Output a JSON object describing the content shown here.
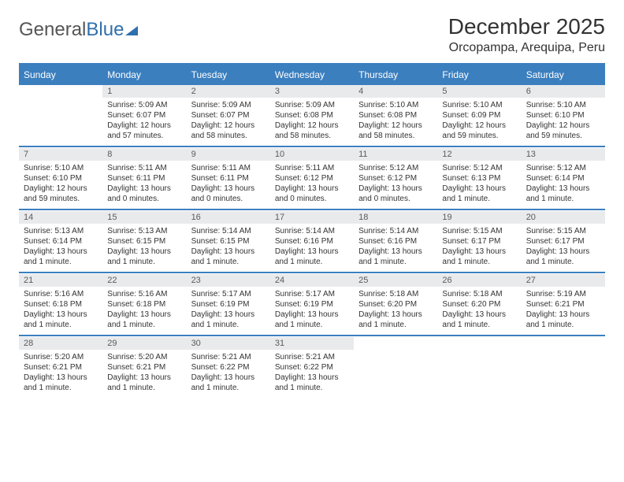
{
  "logo": {
    "text1": "General",
    "text2": "Blue"
  },
  "title": "December 2025",
  "location": "Orcopampa, Arequipa, Peru",
  "colors": {
    "header_blue": "#3b7fbf",
    "daynum_bg": "#e9eaec",
    "text": "#333333",
    "logo_gray": "#555555"
  },
  "fonts": {
    "title_size": 28,
    "location_size": 16,
    "dow_size": 12,
    "daynum_size": 11,
    "cell_size": 10
  },
  "dow": [
    "Sunday",
    "Monday",
    "Tuesday",
    "Wednesday",
    "Thursday",
    "Friday",
    "Saturday"
  ],
  "weeks": [
    {
      "nums": [
        "",
        "1",
        "2",
        "3",
        "4",
        "5",
        "6"
      ],
      "cells": [
        "",
        "Sunrise: 5:09 AM\nSunset: 6:07 PM\nDaylight: 12 hours and 57 minutes.",
        "Sunrise: 5:09 AM\nSunset: 6:07 PM\nDaylight: 12 hours and 58 minutes.",
        "Sunrise: 5:09 AM\nSunset: 6:08 PM\nDaylight: 12 hours and 58 minutes.",
        "Sunrise: 5:10 AM\nSunset: 6:08 PM\nDaylight: 12 hours and 58 minutes.",
        "Sunrise: 5:10 AM\nSunset: 6:09 PM\nDaylight: 12 hours and 59 minutes.",
        "Sunrise: 5:10 AM\nSunset: 6:10 PM\nDaylight: 12 hours and 59 minutes."
      ]
    },
    {
      "nums": [
        "7",
        "8",
        "9",
        "10",
        "11",
        "12",
        "13"
      ],
      "cells": [
        "Sunrise: 5:10 AM\nSunset: 6:10 PM\nDaylight: 12 hours and 59 minutes.",
        "Sunrise: 5:11 AM\nSunset: 6:11 PM\nDaylight: 13 hours and 0 minutes.",
        "Sunrise: 5:11 AM\nSunset: 6:11 PM\nDaylight: 13 hours and 0 minutes.",
        "Sunrise: 5:11 AM\nSunset: 6:12 PM\nDaylight: 13 hours and 0 minutes.",
        "Sunrise: 5:12 AM\nSunset: 6:12 PM\nDaylight: 13 hours and 0 minutes.",
        "Sunrise: 5:12 AM\nSunset: 6:13 PM\nDaylight: 13 hours and 1 minute.",
        "Sunrise: 5:12 AM\nSunset: 6:14 PM\nDaylight: 13 hours and 1 minute."
      ]
    },
    {
      "nums": [
        "14",
        "15",
        "16",
        "17",
        "18",
        "19",
        "20"
      ],
      "cells": [
        "Sunrise: 5:13 AM\nSunset: 6:14 PM\nDaylight: 13 hours and 1 minute.",
        "Sunrise: 5:13 AM\nSunset: 6:15 PM\nDaylight: 13 hours and 1 minute.",
        "Sunrise: 5:14 AM\nSunset: 6:15 PM\nDaylight: 13 hours and 1 minute.",
        "Sunrise: 5:14 AM\nSunset: 6:16 PM\nDaylight: 13 hours and 1 minute.",
        "Sunrise: 5:14 AM\nSunset: 6:16 PM\nDaylight: 13 hours and 1 minute.",
        "Sunrise: 5:15 AM\nSunset: 6:17 PM\nDaylight: 13 hours and 1 minute.",
        "Sunrise: 5:15 AM\nSunset: 6:17 PM\nDaylight: 13 hours and 1 minute."
      ]
    },
    {
      "nums": [
        "21",
        "22",
        "23",
        "24",
        "25",
        "26",
        "27"
      ],
      "cells": [
        "Sunrise: 5:16 AM\nSunset: 6:18 PM\nDaylight: 13 hours and 1 minute.",
        "Sunrise: 5:16 AM\nSunset: 6:18 PM\nDaylight: 13 hours and 1 minute.",
        "Sunrise: 5:17 AM\nSunset: 6:19 PM\nDaylight: 13 hours and 1 minute.",
        "Sunrise: 5:17 AM\nSunset: 6:19 PM\nDaylight: 13 hours and 1 minute.",
        "Sunrise: 5:18 AM\nSunset: 6:20 PM\nDaylight: 13 hours and 1 minute.",
        "Sunrise: 5:18 AM\nSunset: 6:20 PM\nDaylight: 13 hours and 1 minute.",
        "Sunrise: 5:19 AM\nSunset: 6:21 PM\nDaylight: 13 hours and 1 minute."
      ]
    },
    {
      "nums": [
        "28",
        "29",
        "30",
        "31",
        "",
        "",
        ""
      ],
      "cells": [
        "Sunrise: 5:20 AM\nSunset: 6:21 PM\nDaylight: 13 hours and 1 minute.",
        "Sunrise: 5:20 AM\nSunset: 6:21 PM\nDaylight: 13 hours and 1 minute.",
        "Sunrise: 5:21 AM\nSunset: 6:22 PM\nDaylight: 13 hours and 1 minute.",
        "Sunrise: 5:21 AM\nSunset: 6:22 PM\nDaylight: 13 hours and 1 minute.",
        "",
        "",
        ""
      ]
    }
  ]
}
